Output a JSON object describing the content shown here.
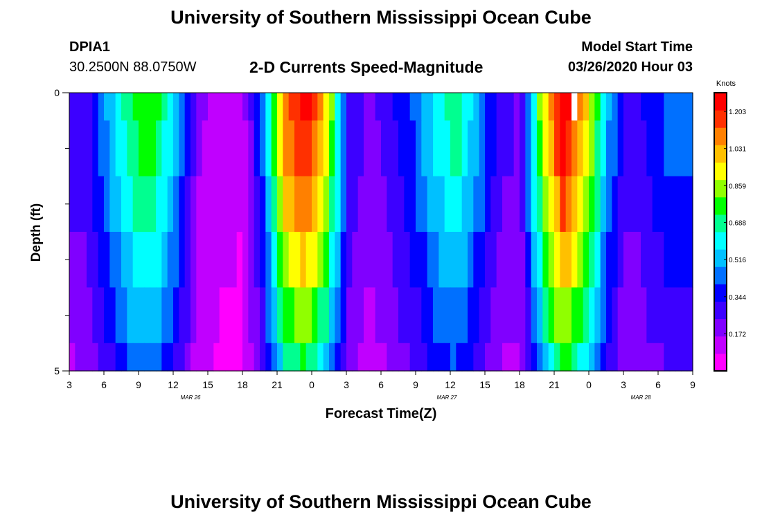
{
  "page": {
    "title_top": "University of Southern Mississippi Ocean Cube",
    "title_bottom": "University of Southern Mississippi Ocean Cube",
    "station_id": "DPIA1",
    "coordinates": "30.2500N 88.0750W",
    "subtitle": "2-D Currents Speed-Magnitude",
    "model_label": "Model Start Time",
    "model_time": "03/26/2020 Hour 03"
  },
  "chart_data": {
    "type": "heatmap",
    "title": "2-D Currents Speed-Magnitude",
    "xlabel": "Forecast Time(Z)",
    "ylabel": "Depth (ft)",
    "units_label": "Knots",
    "y_range": [
      0,
      5
    ],
    "y_tick_labels": [
      "0",
      "5"
    ],
    "x_tick_labels": [
      "3",
      "6",
      "9",
      "12",
      "15",
      "18",
      "21",
      "0",
      "3",
      "6",
      "9",
      "12",
      "15",
      "18",
      "21",
      "0",
      "3",
      "6",
      "9"
    ],
    "date_labels": [
      {
        "label": "MAR 26",
        "x_index": 3.5
      },
      {
        "label": "MAR 27",
        "x_index": 10.9
      },
      {
        "label": "MAR 28",
        "x_index": 16.5
      }
    ],
    "x_hours_start": 3,
    "x_hours_span": 54,
    "colorbar": {
      "min": 0,
      "max": 1.29,
      "tick_labels": [
        "0.172",
        "0.344",
        "0.516",
        "0.688",
        "0.859",
        "1.031",
        "1.203"
      ],
      "colors": [
        "#ff00ff",
        "#c000ff",
        "#8000ff",
        "#3c00ff",
        "#0000ff",
        "#0070ff",
        "#00c0ff",
        "#00ffff",
        "#00ff90",
        "#00ff00",
        "#90ff00",
        "#ffff00",
        "#ffc000",
        "#ff8000",
        "#ff3000",
        "#ff0000"
      ]
    },
    "surface_speed_profile": [
      0.27,
      0.32,
      0.55,
      0.75,
      0.77,
      0.54,
      0.18,
      0.12,
      0.1,
      0.43,
      1.1,
      1.28,
      0.95,
      0.32,
      0.21,
      0.31,
      0.42,
      0.6,
      0.72,
      0.5,
      0.29,
      0.23,
      0.9,
      1.32,
      1.02,
      0.52,
      0.26,
      0.36,
      0.44,
      0.43
    ],
    "depth_layer_factors": [
      1.0,
      0.96,
      0.88,
      0.78,
      0.68,
      0.58
    ],
    "missing_cells": [
      {
        "time_index": 23.5,
        "layer": 0
      }
    ]
  }
}
